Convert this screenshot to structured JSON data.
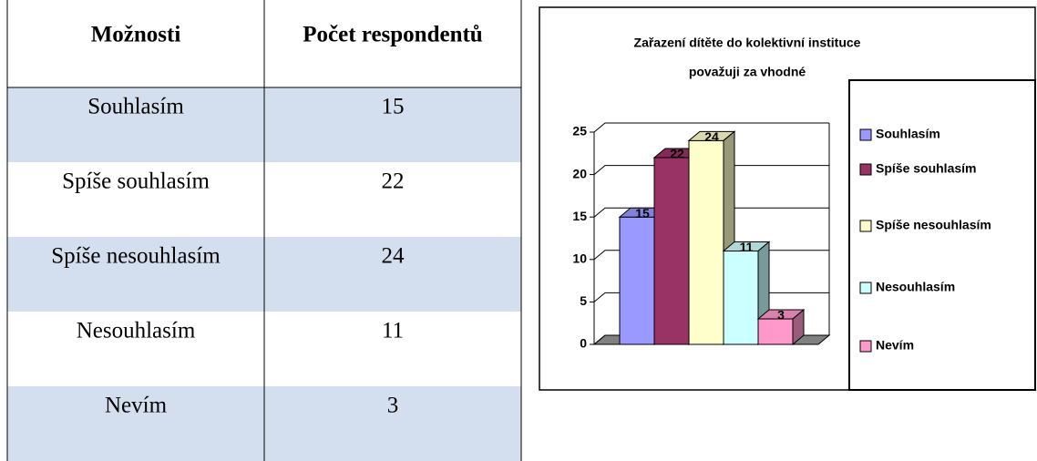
{
  "table": {
    "header": [
      "Možnosti",
      "Počet respondentů"
    ],
    "rows": [
      [
        "Souhlasím",
        15
      ],
      [
        "Spíše souhlasím",
        22
      ],
      [
        "Spíše nesouhlasím",
        24
      ],
      [
        "Nesouhlasím",
        11
      ],
      [
        "Nevím",
        3
      ]
    ]
  },
  "chart_data": {
    "type": "bar3d",
    "title": [
      "Zařazení dítěte do kolektivní instituce",
      "považuji za vhodné"
    ],
    "categories": [
      "Souhlasím",
      "Spíše souhlasím",
      "Spíše nesouhlasím",
      "Nesouhlasím",
      "Nevím"
    ],
    "values": [
      15,
      22,
      24,
      11,
      3
    ],
    "colors": [
      "#9999ff",
      "#993366",
      "#ffffcc",
      "#ccffff",
      "#ff99cc"
    ],
    "ylim": [
      0,
      25
    ],
    "yticks": [
      0,
      5,
      10,
      15,
      20,
      25
    ],
    "grid": true,
    "legend": "right"
  }
}
